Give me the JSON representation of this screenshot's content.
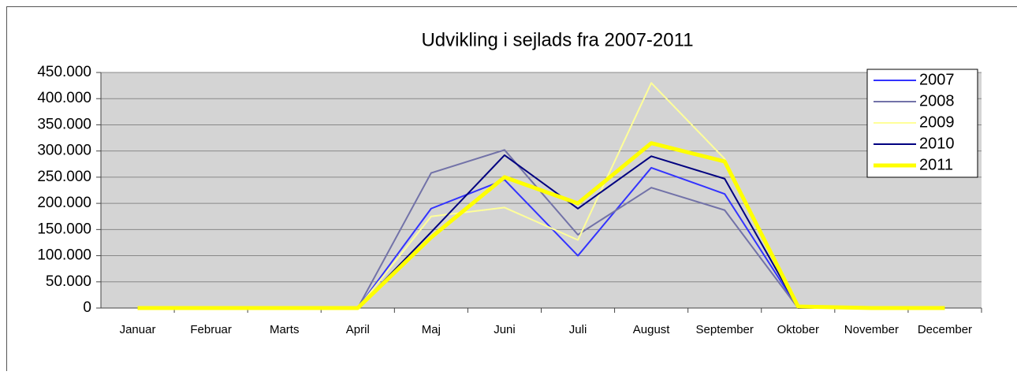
{
  "chart_data": {
    "type": "line",
    "title": "Udvikling i sejlads fra 2007-2011",
    "categories": [
      "Januar",
      "Februar",
      "Marts",
      "April",
      "Maj",
      "Juni",
      "Juli",
      "August",
      "September",
      "Oktober",
      "November",
      "December"
    ],
    "series": [
      {
        "name": "2007",
        "color": "#3333ff",
        "width": 2,
        "values": [
          0,
          0,
          0,
          0,
          190000,
          245000,
          100000,
          268000,
          218000,
          0,
          0,
          0
        ]
      },
      {
        "name": "2008",
        "color": "#7272a8",
        "width": 2,
        "values": [
          0,
          0,
          0,
          0,
          258000,
          302000,
          140000,
          230000,
          187000,
          0,
          0,
          0
        ]
      },
      {
        "name": "2009",
        "color": "#ffff99",
        "width": 2,
        "values": [
          0,
          0,
          0,
          0,
          175000,
          192000,
          130000,
          430000,
          285000,
          0,
          0,
          0
        ]
      },
      {
        "name": "2010",
        "color": "#000080",
        "width": 2,
        "values": [
          0,
          0,
          0,
          0,
          145000,
          292000,
          190000,
          290000,
          247000,
          0,
          0,
          0
        ]
      },
      {
        "name": "2011",
        "color": "#ffff00",
        "width": 5,
        "values": [
          0,
          0,
          0,
          0,
          135000,
          250000,
          200000,
          315000,
          280000,
          3000,
          0,
          0
        ]
      }
    ],
    "ylim": [
      0,
      450000
    ],
    "yticks": [
      0,
      {
        "value": 50000,
        "label": "50.000"
      },
      {
        "value": 100000,
        "label": "100.000"
      },
      {
        "value": 150000,
        "label": "150.000"
      },
      {
        "value": 200000,
        "label": "200.000"
      },
      {
        "value": 250000,
        "label": "250.000"
      },
      {
        "value": 300000,
        "label": "300.000"
      },
      {
        "value": 350000,
        "label": "350.000"
      },
      {
        "value": 400000,
        "label": "400.000"
      },
      {
        "value": 450000,
        "label": "450.000"
      }
    ],
    "grid": true,
    "legend": "top-right"
  }
}
